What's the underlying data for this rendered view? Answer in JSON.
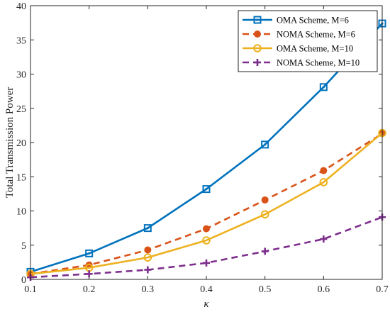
{
  "chart_data": {
    "type": "line",
    "xlabel": "κ",
    "ylabel": "Total Transmission Power",
    "xlim": [
      0.1,
      0.7
    ],
    "ylim": [
      0,
      40
    ],
    "xticks": [
      "0.1",
      "0.2",
      "0.3",
      "0.4",
      "0.5",
      "0.6",
      "0.7"
    ],
    "yticks": [
      "0",
      "5",
      "10",
      "15",
      "20",
      "25",
      "30",
      "35",
      "40"
    ],
    "x": [
      0.1,
      0.2,
      0.3,
      0.4,
      0.5,
      0.6,
      0.7
    ],
    "grid": false,
    "legend_position": "top-right",
    "series": [
      {
        "name": "OMA Scheme, M=6",
        "color": "#0072BD",
        "dash": "solid",
        "marker": "square-dot",
        "values": [
          1.1,
          3.8,
          7.5,
          13.2,
          19.7,
          28.1,
          37.4
        ]
      },
      {
        "name": "NOMA Scheme, M=6",
        "color": "#D95319",
        "dash": "dashed",
        "marker": "filled-circle",
        "values": [
          0.8,
          2.1,
          4.3,
          7.4,
          11.6,
          15.9,
          21.3
        ]
      },
      {
        "name": "OMA Scheme, M=10",
        "color": "#EDB120",
        "dash": "solid",
        "marker": "open-circle",
        "values": [
          0.8,
          1.7,
          3.2,
          5.7,
          9.5,
          14.2,
          21.4
        ]
      },
      {
        "name": "NOMA Scheme, M=10",
        "color": "#7E2F8E",
        "dash": "dashed",
        "marker": "plus",
        "values": [
          0.3,
          0.8,
          1.4,
          2.4,
          4.1,
          5.9,
          9.1
        ]
      }
    ]
  }
}
